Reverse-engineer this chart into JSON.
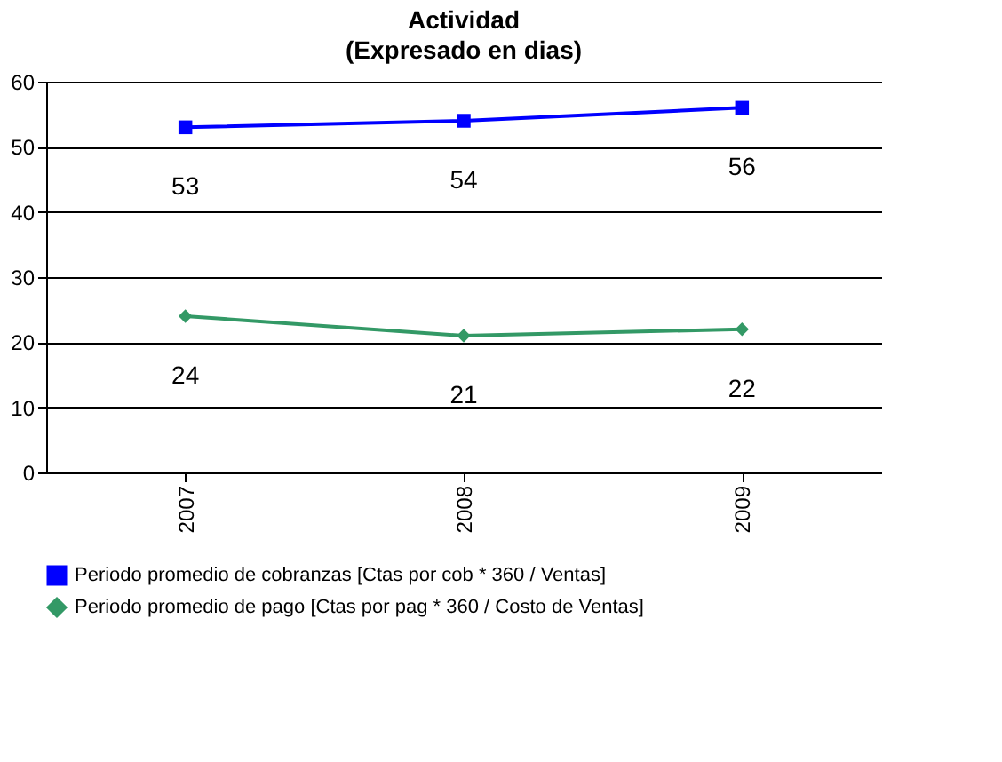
{
  "chart_data": {
    "type": "line",
    "title": "Actividad",
    "subtitle": "(Expresado en dias)",
    "categories": [
      "2007",
      "2008",
      "2009"
    ],
    "series": [
      {
        "name": "Periodo promedio de cobranzas [Ctas por cob * 360 / Ventas]",
        "color": "#0000ff",
        "marker": "square",
        "values": [
          53,
          54,
          56
        ]
      },
      {
        "name": "Periodo promedio de pago [Ctas por pag * 360 / Costo de Ventas]",
        "color": "#339966",
        "marker": "diamond",
        "values": [
          24,
          21,
          22
        ]
      }
    ],
    "ylim": [
      0,
      60
    ],
    "yticks": [
      0,
      10,
      20,
      30,
      40,
      50,
      60
    ],
    "grid": "y",
    "legend": "bottom",
    "data_labels": true
  }
}
